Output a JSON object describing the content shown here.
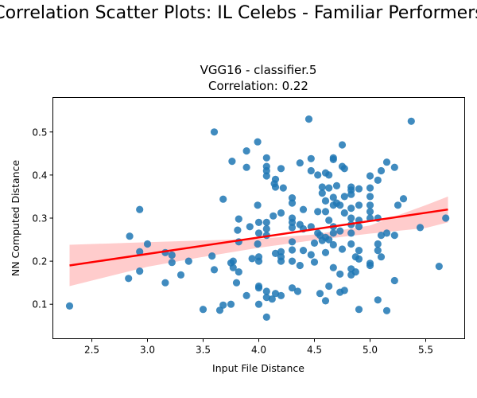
{
  "figure": {
    "title": "Correlation Scatter Plots: IL Celebs - Familiar Performers"
  },
  "chart_data": {
    "type": "scatter",
    "title": "VGG16 - classifier.5",
    "subtitle": "Correlation: 0.22",
    "xlabel": "Input File Distance",
    "ylabel": "NN Computed Distance",
    "xlim": [
      2.15,
      5.85
    ],
    "ylim": [
      0.02,
      0.58
    ],
    "xticks": [
      "2.5",
      "3.0",
      "3.5",
      "4.0",
      "4.5",
      "5.0",
      "5.5"
    ],
    "yticks": [
      "0.1",
      "0.2",
      "0.3",
      "0.4",
      "0.5"
    ],
    "grid": false,
    "colors": {
      "points": "#1f77b4",
      "regression": "#ff0000",
      "ci_band": "#ffcccc"
    },
    "regression": {
      "x": [
        2.3,
        5.7
      ],
      "y": [
        0.19,
        0.32
      ]
    },
    "confidence_band": {
      "x": [
        2.3,
        3.0,
        3.5,
        4.0,
        4.5,
        5.0,
        5.5,
        5.7
      ],
      "lower": [
        0.142,
        0.187,
        0.21,
        0.231,
        0.249,
        0.264,
        0.277,
        0.29
      ],
      "upper": [
        0.238,
        0.244,
        0.248,
        0.252,
        0.262,
        0.283,
        0.33,
        0.35
      ]
    },
    "points": [
      [
        2.3,
        0.096
      ],
      [
        2.83,
        0.16
      ],
      [
        2.84,
        0.258
      ],
      [
        2.93,
        0.32
      ],
      [
        2.93,
        0.222
      ],
      [
        2.93,
        0.177
      ],
      [
        3.0,
        0.24
      ],
      [
        3.16,
        0.15
      ],
      [
        3.16,
        0.22
      ],
      [
        3.22,
        0.214
      ],
      [
        3.22,
        0.197
      ],
      [
        3.3,
        0.168
      ],
      [
        3.37,
        0.2
      ],
      [
        3.5,
        0.088
      ],
      [
        3.58,
        0.212
      ],
      [
        3.6,
        0.5
      ],
      [
        3.6,
        0.18
      ],
      [
        3.65,
        0.086
      ],
      [
        3.68,
        0.344
      ],
      [
        3.68,
        0.098
      ],
      [
        3.75,
        0.196
      ],
      [
        3.75,
        0.1
      ],
      [
        3.76,
        0.432
      ],
      [
        3.77,
        0.2
      ],
      [
        3.77,
        0.185
      ],
      [
        3.8,
        0.15
      ],
      [
        3.82,
        0.298
      ],
      [
        3.82,
        0.175
      ],
      [
        3.82,
        0.245
      ],
      [
        3.81,
        0.272
      ],
      [
        3.89,
        0.456
      ],
      [
        3.89,
        0.418
      ],
      [
        3.89,
        0.12
      ],
      [
        3.92,
        0.28
      ],
      [
        3.94,
        0.206
      ],
      [
        3.99,
        0.477
      ],
      [
        3.99,
        0.33
      ],
      [
        3.99,
        0.24
      ],
      [
        4.0,
        0.265
      ],
      [
        4.0,
        0.1
      ],
      [
        4.0,
        0.142
      ],
      [
        4.0,
        0.138
      ],
      [
        4.0,
        0.2
      ],
      [
        4.0,
        0.21
      ],
      [
        4.0,
        0.29
      ],
      [
        4.07,
        0.44
      ],
      [
        4.07,
        0.42
      ],
      [
        4.07,
        0.41
      ],
      [
        4.07,
        0.398
      ],
      [
        4.07,
        0.29
      ],
      [
        4.07,
        0.275
      ],
      [
        4.07,
        0.26
      ],
      [
        4.07,
        0.13
      ],
      [
        4.07,
        0.116
      ],
      [
        4.07,
        0.07
      ],
      [
        4.12,
        0.112
      ],
      [
        4.13,
        0.305
      ],
      [
        4.14,
        0.38
      ],
      [
        4.15,
        0.39
      ],
      [
        4.15,
        0.372
      ],
      [
        4.15,
        0.218
      ],
      [
        4.15,
        0.125
      ],
      [
        4.2,
        0.415
      ],
      [
        4.2,
        0.312
      ],
      [
        4.2,
        0.222
      ],
      [
        4.2,
        0.21
      ],
      [
        4.2,
        0.2
      ],
      [
        4.2,
        0.12
      ],
      [
        4.22,
        0.37
      ],
      [
        4.3,
        0.347
      ],
      [
        4.3,
        0.335
      ],
      [
        4.3,
        0.3
      ],
      [
        4.3,
        0.29
      ],
      [
        4.3,
        0.278
      ],
      [
        4.3,
        0.245
      ],
      [
        4.3,
        0.226
      ],
      [
        4.3,
        0.2
      ],
      [
        4.3,
        0.138
      ],
      [
        4.35,
        0.13
      ],
      [
        4.37,
        0.428
      ],
      [
        4.37,
        0.285
      ],
      [
        4.37,
        0.19
      ],
      [
        4.4,
        0.32
      ],
      [
        4.4,
        0.225
      ],
      [
        4.4,
        0.275
      ],
      [
        4.45,
        0.53
      ],
      [
        4.47,
        0.438
      ],
      [
        4.47,
        0.41
      ],
      [
        4.47,
        0.28
      ],
      [
        4.47,
        0.215
      ],
      [
        4.5,
        0.198
      ],
      [
        4.5,
        0.242
      ],
      [
        4.53,
        0.4
      ],
      [
        4.53,
        0.315
      ],
      [
        4.53,
        0.265
      ],
      [
        4.55,
        0.26
      ],
      [
        4.55,
        0.125
      ],
      [
        4.57,
        0.372
      ],
      [
        4.57,
        0.358
      ],
      [
        4.57,
        0.248
      ],
      [
        4.6,
        0.405
      ],
      [
        4.6,
        0.34
      ],
      [
        4.6,
        0.315
      ],
      [
        4.6,
        0.255
      ],
      [
        4.6,
        0.22
      ],
      [
        4.6,
        0.108
      ],
      [
        4.63,
        0.4
      ],
      [
        4.63,
        0.37
      ],
      [
        4.63,
        0.295
      ],
      [
        4.63,
        0.25
      ],
      [
        4.63,
        0.142
      ],
      [
        4.67,
        0.44
      ],
      [
        4.67,
        0.436
      ],
      [
        4.67,
        0.348
      ],
      [
        4.67,
        0.33
      ],
      [
        4.67,
        0.28
      ],
      [
        4.67,
        0.265
      ],
      [
        4.67,
        0.238
      ],
      [
        4.67,
        0.185
      ],
      [
        4.7,
        0.375
      ],
      [
        4.7,
        0.335
      ],
      [
        4.73,
        0.33
      ],
      [
        4.73,
        0.27
      ],
      [
        4.73,
        0.17
      ],
      [
        4.73,
        0.128
      ],
      [
        4.75,
        0.47
      ],
      [
        4.75,
        0.42
      ],
      [
        4.75,
        0.228
      ],
      [
        4.77,
        0.415
      ],
      [
        4.77,
        0.35
      ],
      [
        4.77,
        0.312
      ],
      [
        4.77,
        0.132
      ],
      [
        4.83,
        0.372
      ],
      [
        4.83,
        0.365
      ],
      [
        4.83,
        0.355
      ],
      [
        4.83,
        0.323
      ],
      [
        4.83,
        0.3
      ],
      [
        4.83,
        0.285
      ],
      [
        4.83,
        0.265
      ],
      [
        4.83,
        0.24
      ],
      [
        4.83,
        0.182
      ],
      [
        4.83,
        0.168
      ],
      [
        4.87,
        0.21
      ],
      [
        4.87,
        0.175
      ],
      [
        4.9,
        0.368
      ],
      [
        4.9,
        0.33
      ],
      [
        4.9,
        0.295
      ],
      [
        4.9,
        0.28
      ],
      [
        4.9,
        0.225
      ],
      [
        4.9,
        0.205
      ],
      [
        4.9,
        0.088
      ],
      [
        5.0,
        0.398
      ],
      [
        5.0,
        0.37
      ],
      [
        5.0,
        0.35
      ],
      [
        5.0,
        0.33
      ],
      [
        5.0,
        0.315
      ],
      [
        5.0,
        0.3
      ],
      [
        5.0,
        0.19
      ],
      [
        5.0,
        0.195
      ],
      [
        5.07,
        0.388
      ],
      [
        5.07,
        0.3
      ],
      [
        5.07,
        0.24
      ],
      [
        5.07,
        0.225
      ],
      [
        5.07,
        0.11
      ],
      [
        5.1,
        0.41
      ],
      [
        5.1,
        0.26
      ],
      [
        5.1,
        0.21
      ],
      [
        5.15,
        0.43
      ],
      [
        5.15,
        0.265
      ],
      [
        5.15,
        0.085
      ],
      [
        5.22,
        0.418
      ],
      [
        5.22,
        0.26
      ],
      [
        5.22,
        0.155
      ],
      [
        5.25,
        0.33
      ],
      [
        5.3,
        0.345
      ],
      [
        5.37,
        0.525
      ],
      [
        5.45,
        0.278
      ],
      [
        5.62,
        0.188
      ],
      [
        5.68,
        0.3
      ]
    ]
  }
}
